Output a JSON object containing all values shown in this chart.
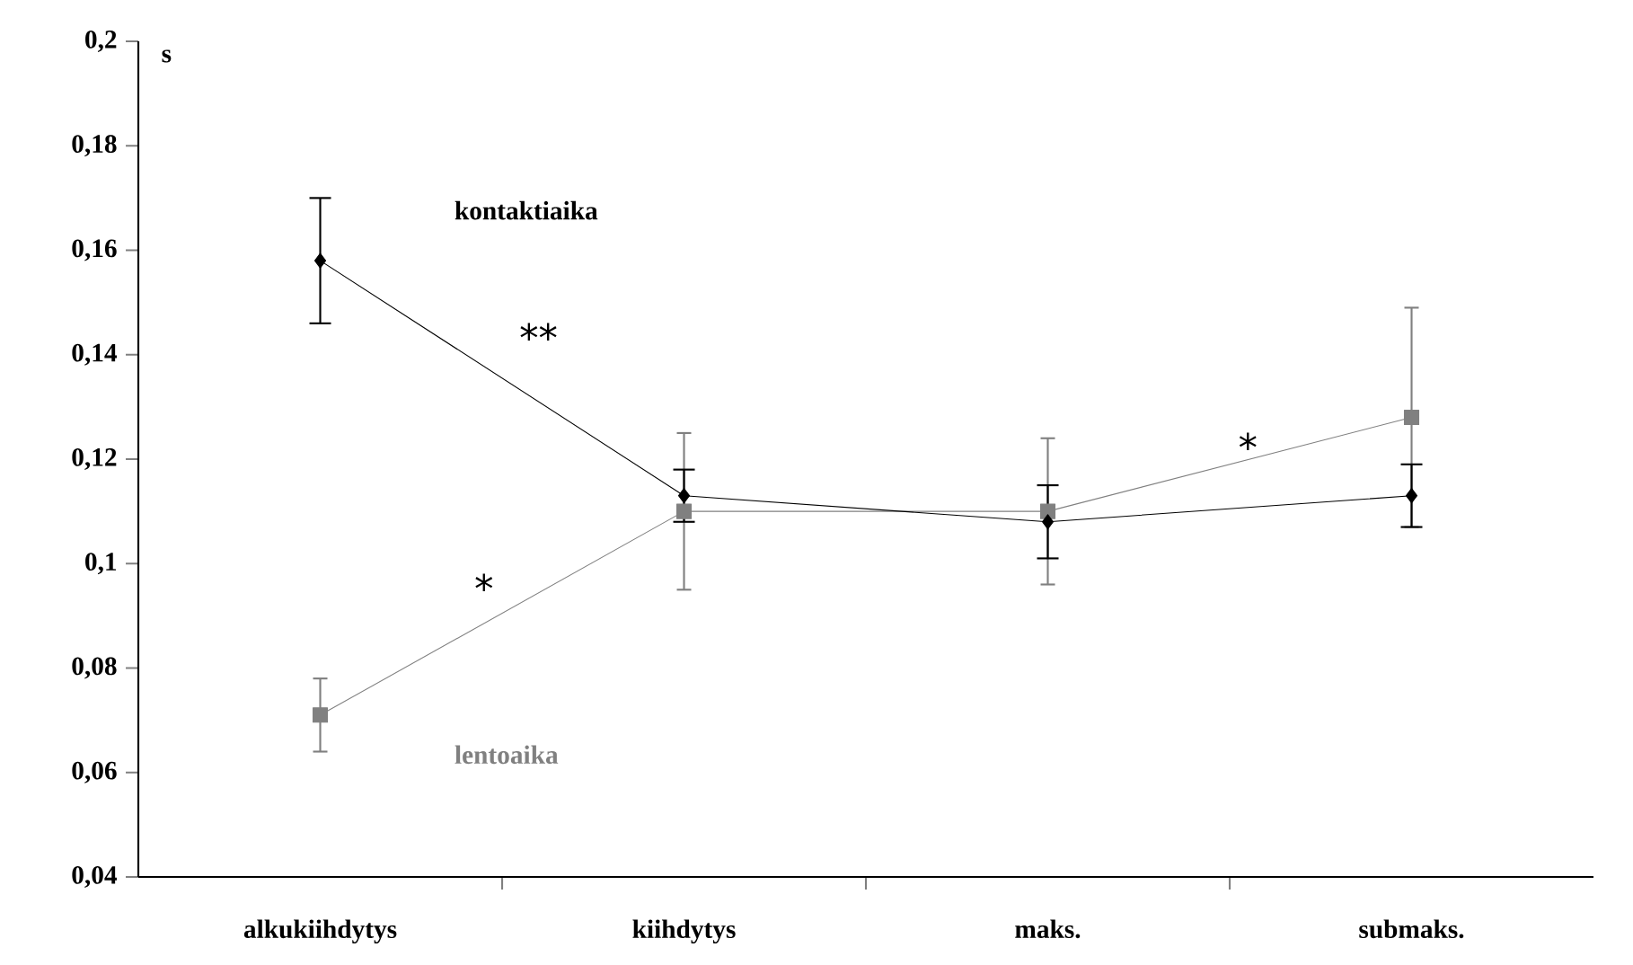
{
  "chart_data": {
    "type": "line",
    "ylabel": "s",
    "categories": [
      "alkukiihdytys",
      "kiihdytys",
      "maks.",
      "submaks."
    ],
    "series": [
      {
        "name": "kontaktiaika",
        "color": "#000000",
        "marker": "diamond",
        "values": [
          0.158,
          0.113,
          0.108,
          0.113
        ],
        "errors": [
          0.012,
          0.005,
          0.007,
          0.006
        ]
      },
      {
        "name": "lentoaika",
        "color": "#808080",
        "marker": "square",
        "values": [
          0.071,
          0.11,
          0.11,
          0.128
        ],
        "errors": [
          0.007,
          0.015,
          0.014,
          0.021
        ]
      }
    ],
    "ylim": [
      0.04,
      0.2
    ],
    "yticks": [
      {
        "value": 0.04,
        "label": "0,04"
      },
      {
        "value": 0.06,
        "label": "0,06"
      },
      {
        "value": 0.08,
        "label": "0,08"
      },
      {
        "value": 0.1,
        "label": "0,1"
      },
      {
        "value": 0.12,
        "label": "0,12"
      },
      {
        "value": 0.14,
        "label": "0,14"
      },
      {
        "value": 0.16,
        "label": "0,16"
      },
      {
        "value": 0.18,
        "label": "0,18"
      },
      {
        "value": 0.2,
        "label": "0,2"
      }
    ],
    "annotations": [
      "**",
      "*",
      "*"
    ],
    "grid": false,
    "legend": false,
    "line_style": "solid"
  }
}
